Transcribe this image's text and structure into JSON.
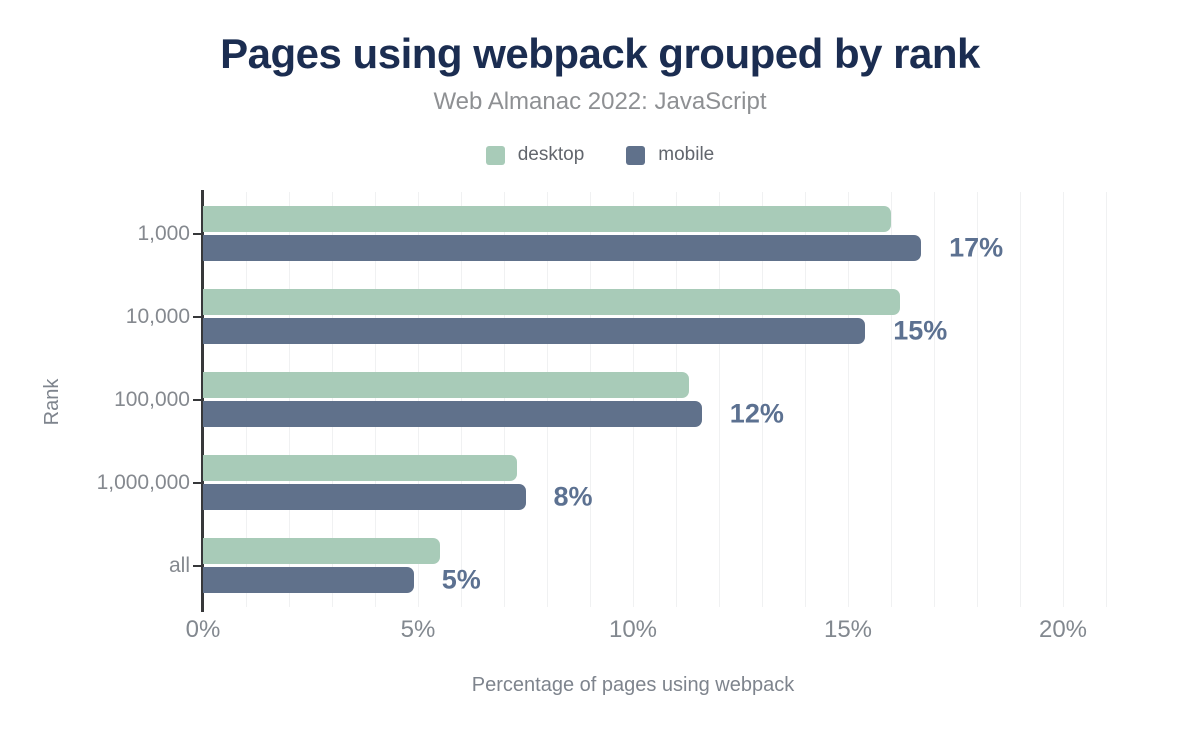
{
  "title": "Pages using webpack grouped by rank",
  "subtitle": "Web Almanac 2022: JavaScript",
  "legend": {
    "items": [
      {
        "label": "desktop",
        "color": "#a8cbb8"
      },
      {
        "label": "mobile",
        "color": "#60718b"
      }
    ]
  },
  "chart_data": {
    "type": "bar",
    "orientation": "horizontal",
    "title": "Pages using webpack grouped by rank",
    "subtitle": "Web Almanac 2022: JavaScript",
    "categories": [
      "1,000",
      "10,000",
      "100,000",
      "1,000,000",
      "all"
    ],
    "series": [
      {
        "name": "desktop",
        "color": "#a8cbb8",
        "values": [
          16.0,
          16.2,
          11.3,
          7.3,
          5.5
        ]
      },
      {
        "name": "mobile",
        "color": "#60718b",
        "values": [
          16.7,
          15.4,
          11.6,
          7.5,
          4.9
        ]
      }
    ],
    "data_labels": [
      "17%",
      "15%",
      "12%",
      "8%",
      "5%"
    ],
    "data_labels_series": "mobile",
    "xlabel": "Percentage of pages using webpack",
    "ylabel": "Rank",
    "x_ticks": [
      "0%",
      "5%",
      "10%",
      "15%",
      "20%"
    ],
    "x_tick_values": [
      0,
      5,
      10,
      15,
      20
    ],
    "xlim": [
      0,
      21
    ],
    "grid": "vertical lines every 1%",
    "legend_position": "top center"
  },
  "colors": {
    "title": "#1b2d51",
    "subtitle": "#8e9093",
    "data_label": "#5c7191",
    "axis_line": "#37383a",
    "gridline": "#f0f1f2",
    "tick_label": "#82888f"
  }
}
